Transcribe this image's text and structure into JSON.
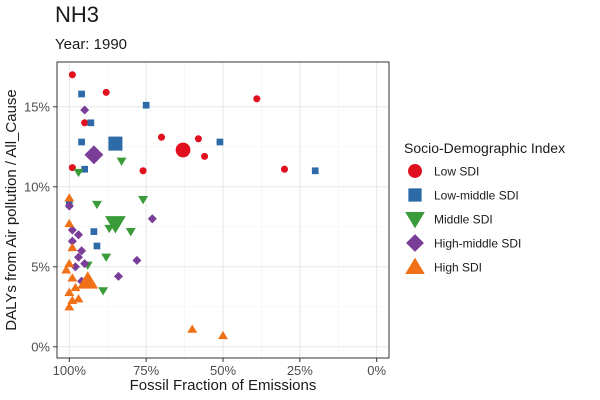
{
  "title": "NH3",
  "subtitle": "Year: 1990",
  "chart_data": {
    "type": "scatter",
    "xlabel": "Fossil Fraction of Emissions",
    "ylabel": "DALYs from Air pollution / All_Cause",
    "x_reversed": true,
    "xlim": [
      1.04,
      -0.04
    ],
    "ylim": [
      -0.7,
      17.8
    ],
    "x_ticks": [
      1,
      0.75,
      0.5,
      0.25,
      0
    ],
    "x_tick_labels": [
      "100%",
      "75%",
      "50%",
      "25%",
      "0%"
    ],
    "y_ticks": [
      0,
      5,
      10,
      15
    ],
    "y_tick_labels": [
      "0%",
      "5%",
      "10%",
      "15%"
    ],
    "grid": true,
    "legend_position": "right",
    "legend_title": "Socio-Demographic Index",
    "series": [
      {
        "name": "Low SDI",
        "shape": "circle",
        "color": "#e0101f",
        "points": [
          {
            "x": 0.99,
            "y": 17.0,
            "size": 1
          },
          {
            "x": 0.88,
            "y": 15.9,
            "size": 1
          },
          {
            "x": 0.39,
            "y": 15.5,
            "size": 1
          },
          {
            "x": 0.95,
            "y": 14.0,
            "size": 1
          },
          {
            "x": 0.7,
            "y": 13.1,
            "size": 1
          },
          {
            "x": 0.58,
            "y": 13.0,
            "size": 1
          },
          {
            "x": 0.63,
            "y": 12.3,
            "size": 3
          },
          {
            "x": 0.56,
            "y": 11.9,
            "size": 1
          },
          {
            "x": 0.99,
            "y": 11.2,
            "size": 1
          },
          {
            "x": 0.76,
            "y": 11.0,
            "size": 1
          },
          {
            "x": 0.3,
            "y": 11.1,
            "size": 1
          }
        ]
      },
      {
        "name": "Low-middle SDI",
        "shape": "square",
        "color": "#2c6aa8",
        "points": [
          {
            "x": 0.96,
            "y": 15.8,
            "size": 1
          },
          {
            "x": 0.75,
            "y": 15.1,
            "size": 1
          },
          {
            "x": 0.93,
            "y": 14.0,
            "size": 1
          },
          {
            "x": 0.96,
            "y": 12.8,
            "size": 1
          },
          {
            "x": 0.85,
            "y": 12.7,
            "size": 3
          },
          {
            "x": 0.51,
            "y": 12.8,
            "size": 1
          },
          {
            "x": 0.95,
            "y": 11.1,
            "size": 1
          },
          {
            "x": 0.2,
            "y": 11.0,
            "size": 1
          },
          {
            "x": 0.92,
            "y": 7.2,
            "size": 1
          },
          {
            "x": 0.91,
            "y": 6.3,
            "size": 1
          },
          {
            "x": 1.0,
            "y": 8.9,
            "size": 1
          }
        ]
      },
      {
        "name": "Middle SDI",
        "shape": "triangle-down",
        "color": "#3a9b3a",
        "points": [
          {
            "x": 0.83,
            "y": 11.6,
            "size": 1
          },
          {
            "x": 0.97,
            "y": 10.9,
            "size": 1
          },
          {
            "x": 0.76,
            "y": 9.2,
            "size": 1
          },
          {
            "x": 0.91,
            "y": 8.9,
            "size": 1
          },
          {
            "x": 0.85,
            "y": 7.7,
            "size": 3
          },
          {
            "x": 0.8,
            "y": 7.2,
            "size": 1
          },
          {
            "x": 0.87,
            "y": 7.4,
            "size": 1
          },
          {
            "x": 0.88,
            "y": 5.6,
            "size": 1
          },
          {
            "x": 0.94,
            "y": 5.1,
            "size": 1
          },
          {
            "x": 0.89,
            "y": 3.5,
            "size": 1
          }
        ]
      },
      {
        "name": "High-middle SDI",
        "shape": "diamond",
        "color": "#7a3d98",
        "points": [
          {
            "x": 0.95,
            "y": 14.8,
            "size": 1
          },
          {
            "x": 0.92,
            "y": 12.0,
            "size": 3
          },
          {
            "x": 1.0,
            "y": 8.8,
            "size": 1
          },
          {
            "x": 0.73,
            "y": 8.0,
            "size": 1
          },
          {
            "x": 0.99,
            "y": 7.3,
            "size": 1
          },
          {
            "x": 0.97,
            "y": 7.0,
            "size": 1
          },
          {
            "x": 0.99,
            "y": 6.6,
            "size": 1
          },
          {
            "x": 0.96,
            "y": 6.0,
            "size": 1
          },
          {
            "x": 0.97,
            "y": 5.6,
            "size": 1
          },
          {
            "x": 0.95,
            "y": 5.2,
            "size": 1
          },
          {
            "x": 0.98,
            "y": 5.0,
            "size": 1
          },
          {
            "x": 0.78,
            "y": 5.4,
            "size": 1
          },
          {
            "x": 0.84,
            "y": 4.4,
            "size": 1
          },
          {
            "x": 0.96,
            "y": 4.1,
            "size": 1
          }
        ]
      },
      {
        "name": "High SDI",
        "shape": "triangle-up",
        "color": "#f07018",
        "points": [
          {
            "x": 1.0,
            "y": 9.3,
            "size": 1
          },
          {
            "x": 1.0,
            "y": 7.7,
            "size": 1
          },
          {
            "x": 0.99,
            "y": 6.2,
            "size": 1
          },
          {
            "x": 1.0,
            "y": 5.2,
            "size": 1
          },
          {
            "x": 1.01,
            "y": 4.8,
            "size": 1
          },
          {
            "x": 0.99,
            "y": 4.3,
            "size": 1
          },
          {
            "x": 0.94,
            "y": 4.1,
            "size": 3
          },
          {
            "x": 0.98,
            "y": 3.7,
            "size": 1
          },
          {
            "x": 1.0,
            "y": 3.4,
            "size": 1
          },
          {
            "x": 0.97,
            "y": 3.0,
            "size": 1
          },
          {
            "x": 0.99,
            "y": 2.9,
            "size": 1
          },
          {
            "x": 1.0,
            "y": 2.5,
            "size": 1
          },
          {
            "x": 0.6,
            "y": 1.1,
            "size": 1
          },
          {
            "x": 0.5,
            "y": 0.7,
            "size": 1
          }
        ]
      }
    ]
  }
}
